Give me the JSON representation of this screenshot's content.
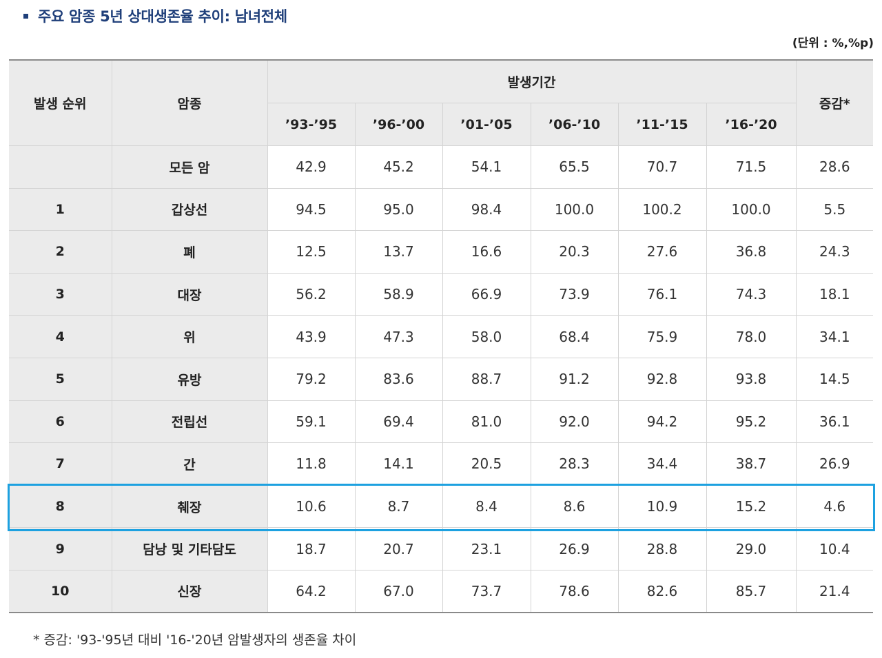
{
  "title": "주요 암종 5년 상대생존율 추이: 남녀전체",
  "unit": "(단위 : %,%p)",
  "headers": {
    "rank": "발생 순위",
    "cancer": "암종",
    "period": "발생기간",
    "change": "증감*",
    "periods": [
      "’93-’95",
      "’96-’00",
      "’01-’05",
      "’06-’10",
      "’11-’15",
      "’16-’20"
    ]
  },
  "rows": [
    {
      "rank": "",
      "cancer": "모든 암",
      "values": [
        "42.9",
        "45.2",
        "54.1",
        "65.5",
        "70.7",
        "71.5"
      ],
      "change": "28.6"
    },
    {
      "rank": "1",
      "cancer": "갑상선",
      "values": [
        "94.5",
        "95.0",
        "98.4",
        "100.0",
        "100.2",
        "100.0"
      ],
      "change": "5.5"
    },
    {
      "rank": "2",
      "cancer": "폐",
      "values": [
        "12.5",
        "13.7",
        "16.6",
        "20.3",
        "27.6",
        "36.8"
      ],
      "change": "24.3"
    },
    {
      "rank": "3",
      "cancer": "대장",
      "values": [
        "56.2",
        "58.9",
        "66.9",
        "73.9",
        "76.1",
        "74.3"
      ],
      "change": "18.1"
    },
    {
      "rank": "4",
      "cancer": "위",
      "values": [
        "43.9",
        "47.3",
        "58.0",
        "68.4",
        "75.9",
        "78.0"
      ],
      "change": "34.1"
    },
    {
      "rank": "5",
      "cancer": "유방",
      "values": [
        "79.2",
        "83.6",
        "88.7",
        "91.2",
        "92.8",
        "93.8"
      ],
      "change": "14.5"
    },
    {
      "rank": "6",
      "cancer": "전립선",
      "values": [
        "59.1",
        "69.4",
        "81.0",
        "92.0",
        "94.2",
        "95.2"
      ],
      "change": "36.1"
    },
    {
      "rank": "7",
      "cancer": "간",
      "values": [
        "11.8",
        "14.1",
        "20.5",
        "28.3",
        "34.4",
        "38.7"
      ],
      "change": "26.9"
    },
    {
      "rank": "8",
      "cancer": "췌장",
      "values": [
        "10.6",
        "8.7",
        "8.4",
        "8.6",
        "10.9",
        "15.2"
      ],
      "change": "4.6"
    },
    {
      "rank": "9",
      "cancer": "담낭 및 기타담도",
      "values": [
        "18.7",
        "20.7",
        "23.1",
        "26.9",
        "28.8",
        "29.0"
      ],
      "change": "10.4"
    },
    {
      "rank": "10",
      "cancer": "신장",
      "values": [
        "64.2",
        "67.0",
        "73.7",
        "78.6",
        "82.6",
        "85.7"
      ],
      "change": "21.4"
    }
  ],
  "highlighted_row": "췌장",
  "footnote": "* 증감: '93-'95년 대비 '16-'20년 암발생자의 생존율 차이",
  "colors": {
    "title": "#1f3f7a",
    "header_bg": "#ebebeb",
    "highlight": "#1da1e0"
  }
}
